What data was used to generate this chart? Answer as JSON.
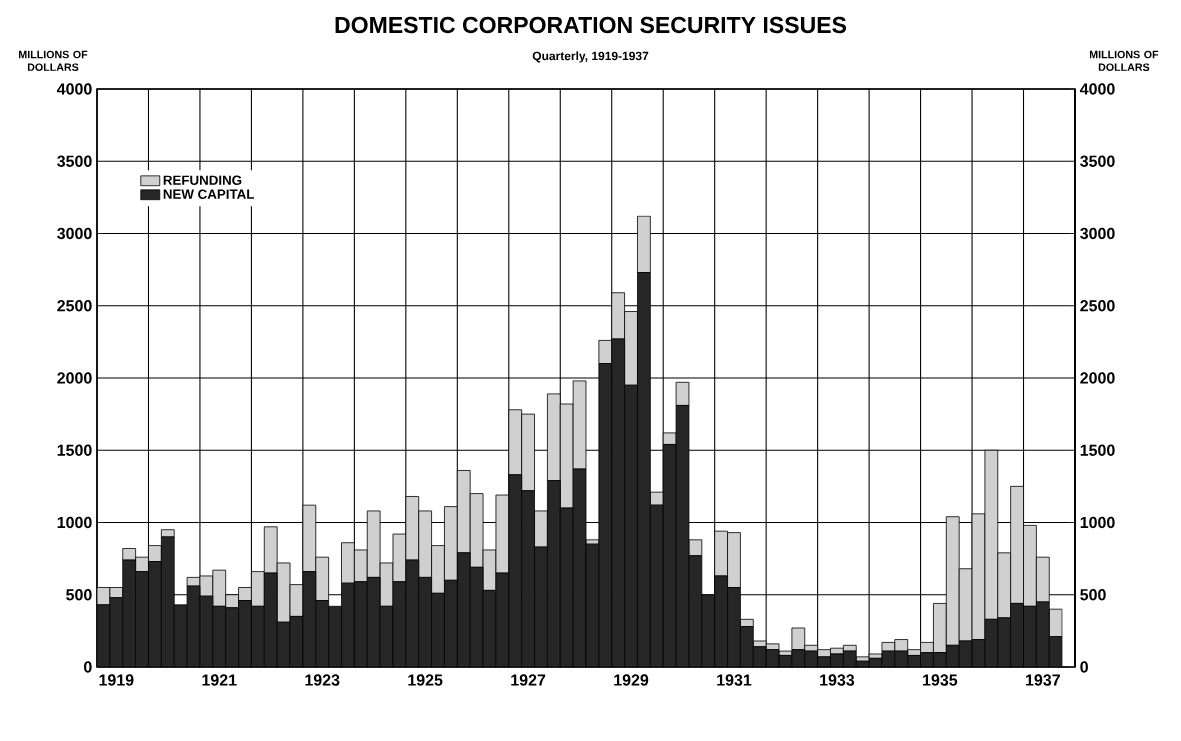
{
  "chart_data": {
    "type": "bar",
    "stacked": true,
    "title": "DOMESTIC CORPORATION SECURITY ISSUES",
    "subtitle": "Quarterly, 1919-1937",
    "ylabel": "MILLIONS OF DOLLARS",
    "y2label": "MILLIONS OF DOLLARS",
    "categories": [
      null,
      "1919",
      null,
      null,
      null,
      null,
      null,
      null,
      null,
      "1921",
      null,
      null,
      null,
      null,
      null,
      null,
      null,
      "1923",
      null,
      null,
      null,
      null,
      null,
      null,
      null,
      "1925",
      null,
      null,
      null,
      null,
      null,
      null,
      null,
      "1927",
      null,
      null,
      null,
      null,
      null,
      null,
      null,
      "1929",
      null,
      null,
      null,
      null,
      null,
      null,
      null,
      "1931",
      null,
      null,
      null,
      null,
      null,
      null,
      null,
      "1933",
      null,
      null,
      null,
      null,
      null,
      null,
      null,
      "1935",
      null,
      null,
      null,
      null,
      null,
      null,
      null,
      "1937",
      null
    ],
    "series": [
      {
        "name": "NEW CAPITAL",
        "color": "#262626",
        "values": [
          430,
          480,
          740,
          660,
          730,
          900,
          430,
          560,
          490,
          420,
          410,
          460,
          420,
          650,
          310,
          350,
          660,
          460,
          420,
          580,
          590,
          620,
          420,
          590,
          740,
          620,
          510,
          600,
          790,
          690,
          530,
          650,
          1330,
          1220,
          830,
          1290,
          1100,
          1370,
          850,
          2100,
          2270,
          1950,
          2730,
          1120,
          1540,
          1810,
          770,
          500,
          630,
          550,
          280,
          140,
          120,
          80,
          120,
          110,
          70,
          90,
          110,
          40,
          60,
          110,
          110,
          80,
          100,
          100,
          150,
          180,
          190,
          330,
          340,
          440,
          420,
          450,
          210
        ]
      },
      {
        "name": "REFUNDING",
        "color": "#d0d0d0",
        "values": [
          120,
          70,
          80,
          100,
          110,
          50,
          0,
          60,
          140,
          250,
          90,
          90,
          240,
          320,
          410,
          220,
          460,
          300,
          0,
          280,
          220,
          460,
          300,
          330,
          440,
          460,
          330,
          510,
          570,
          510,
          280,
          540,
          450,
          530,
          250,
          600,
          720,
          610,
          30,
          160,
          320,
          510,
          390,
          90,
          80,
          160,
          110,
          0,
          310,
          380,
          50,
          40,
          40,
          30,
          150,
          40,
          50,
          40,
          40,
          30,
          30,
          60,
          80,
          40,
          70,
          340,
          890,
          500,
          870,
          1170,
          450,
          810,
          560,
          310,
          190
        ]
      }
    ],
    "ylim": [
      0,
      4000
    ],
    "yticks": [
      0,
      500,
      1000,
      1500,
      2000,
      2500,
      3000,
      3500,
      4000
    ],
    "y2lim": [
      0,
      4000
    ],
    "y2ticks": [
      0,
      500,
      1000,
      1500,
      2000,
      2500,
      3000,
      3500,
      4000
    ],
    "grid": true,
    "legend": "top left"
  }
}
